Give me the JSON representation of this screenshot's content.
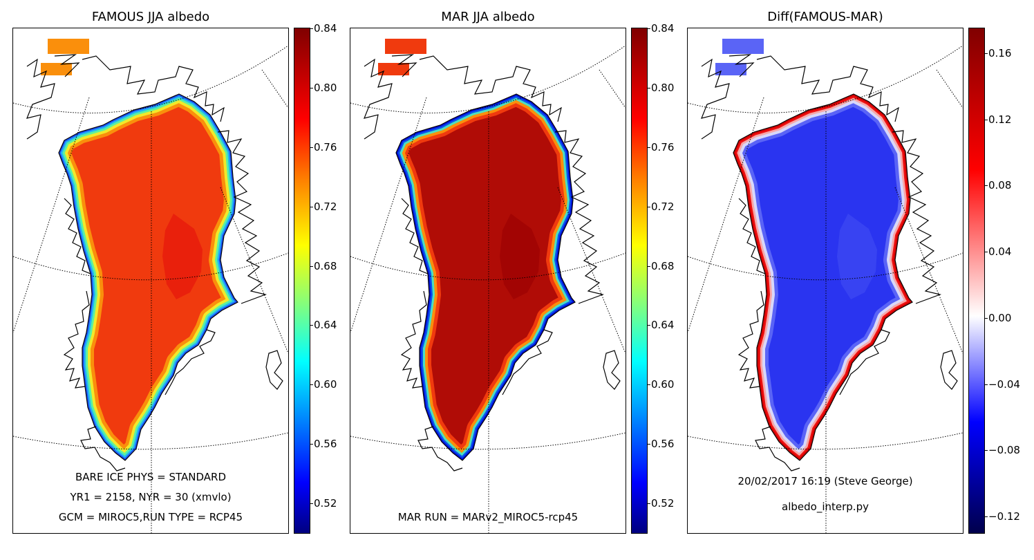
{
  "panels": [
    {
      "title": "FAMOUS JJA albedo",
      "annotations": [
        "BARE ICE PHYS = STANDARD",
        "YR1 = 2158, NYR = 30 (xmvlo)",
        "GCM = MIROC5,RUN TYPE = RCP45"
      ],
      "colorbar": {
        "ticks": [
          "0.84",
          "0.80",
          "0.76",
          "0.72",
          "0.68",
          "0.64",
          "0.60",
          "0.56",
          "0.52"
        ],
        "colormap": "jet",
        "range": [
          0.5,
          0.84
        ]
      },
      "colors": {
        "interior": "#f03a0e",
        "core": "#e81c0c",
        "margin": [
          "#fa8f0c",
          "#f2e82a",
          "#5cf0a0",
          "#22b6f4",
          "#1c4ff2"
        ]
      }
    },
    {
      "title": "MAR JJA albedo",
      "annotations": [
        "MAR RUN = MARv2_MIROC5-rcp45"
      ],
      "colorbar": {
        "ticks": [
          "0.84",
          "0.80",
          "0.76",
          "0.72",
          "0.68",
          "0.64",
          "0.60",
          "0.56",
          "0.52"
        ],
        "colormap": "jet",
        "range": [
          0.5,
          0.84
        ]
      },
      "colors": {
        "interior": "#b00c06",
        "core": "#a00404",
        "margin": [
          "#f03a0e",
          "#fa8f0c",
          "#4ce0c0",
          "#0a54ee",
          "#0010d8"
        ]
      }
    },
    {
      "title": "Diff(FAMOUS-MAR)",
      "annotations": [
        "20/02/2017 16:19 (Steve George)",
        "albedo_interp.py"
      ],
      "colorbar": {
        "ticks": [
          "0.16",
          "0.12",
          "0.08",
          "0.04",
          "0.00",
          "−0.04",
          "−0.08",
          "−0.12"
        ],
        "colormap": "seismic",
        "range": [
          -0.13,
          0.175
        ]
      },
      "colors": {
        "interior": "#2a34f0",
        "core": "#3b46f2",
        "margin": [
          "#5a64f6",
          "#d8d8fa",
          "#f6a8a8",
          "#ee1010",
          "#d00000"
        ]
      }
    }
  ]
}
